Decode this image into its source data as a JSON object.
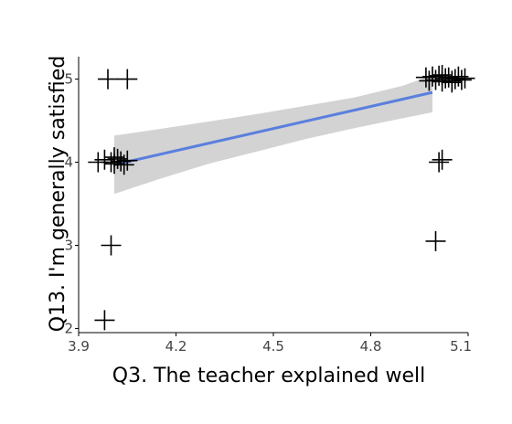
{
  "chart_data": {
    "type": "scatter",
    "xlabel": "Q3. The teacher explained well",
    "ylabel": "Q13. I'm generally satisfied",
    "xlim": [
      3.9,
      5.1
    ],
    "ylim": [
      1.95,
      5.27
    ],
    "x_ticks": [
      3.9,
      4.2,
      4.5,
      4.8,
      5.1
    ],
    "x_tick_labels": [
      "3.9",
      "4.2",
      "4.5",
      "4.8",
      "5.1"
    ],
    "y_ticks": [
      2,
      3,
      4,
      5
    ],
    "y_tick_labels": [
      "2",
      "3",
      "4",
      "5"
    ],
    "points": [
      {
        "x": 3.99,
        "y": 5.0
      },
      {
        "x": 4.05,
        "y": 5.0
      },
      {
        "x": 3.96,
        "y": 4.0
      },
      {
        "x": 3.98,
        "y": 4.03
      },
      {
        "x": 4.0,
        "y": 4.0
      },
      {
        "x": 4.01,
        "y": 3.98
      },
      {
        "x": 4.02,
        "y": 4.04
      },
      {
        "x": 4.03,
        "y": 4.01
      },
      {
        "x": 4.04,
        "y": 3.97
      },
      {
        "x": 4.05,
        "y": 4.02
      },
      {
        "x": 4.01,
        "y": 4.06
      },
      {
        "x": 4.0,
        "y": 3.0
      },
      {
        "x": 3.98,
        "y": 2.1
      },
      {
        "x": 4.97,
        "y": 5.02
      },
      {
        "x": 4.98,
        "y": 4.98
      },
      {
        "x": 4.99,
        "y": 5.03
      },
      {
        "x": 5.0,
        "y": 4.99
      },
      {
        "x": 5.01,
        "y": 5.04
      },
      {
        "x": 5.02,
        "y": 4.97
      },
      {
        "x": 5.03,
        "y": 5.01
      },
      {
        "x": 5.04,
        "y": 5.02
      },
      {
        "x": 5.05,
        "y": 4.98
      },
      {
        "x": 5.06,
        "y": 5.0
      },
      {
        "x": 5.07,
        "y": 5.03
      },
      {
        "x": 5.08,
        "y": 4.99
      },
      {
        "x": 5.09,
        "y": 5.01
      },
      {
        "x": 5.02,
        "y": 5.05
      },
      {
        "x": 5.05,
        "y": 4.96
      },
      {
        "x": 5.01,
        "y": 4.0
      },
      {
        "x": 5.02,
        "y": 4.03
      },
      {
        "x": 5.0,
        "y": 3.05
      }
    ],
    "trend_line": {
      "color": "#5b7fde",
      "x": [
        4.01,
        4.99
      ],
      "y": [
        3.97,
        4.84
      ]
    },
    "confidence_band": {
      "color": "#d3d3d3",
      "x": [
        4.01,
        4.15,
        4.3,
        4.45,
        4.6,
        4.75,
        4.9,
        4.99
      ],
      "upper": [
        4.32,
        4.4,
        4.49,
        4.58,
        4.68,
        4.78,
        4.92,
        5.05
      ],
      "lower": [
        3.62,
        3.8,
        3.98,
        4.13,
        4.28,
        4.41,
        4.53,
        4.6
      ]
    },
    "grid": false,
    "legend": "none"
  }
}
